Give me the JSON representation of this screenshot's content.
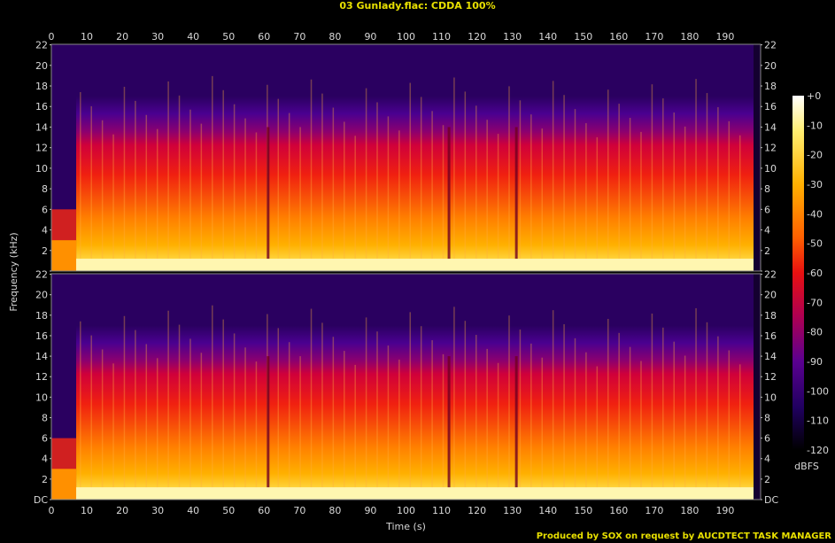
{
  "title": "03 Gunlady.flac: CDDA 100%",
  "footer": "Produced by SOX on request by AUCDTECT TASK MANAGER",
  "chart_data": {
    "type": "heatmap",
    "title": "03 Gunlady.flac: CDDA 100%",
    "xlabel": "Time (s)",
    "ylabel": "Frequency (kHz)",
    "xlim": [
      0,
      200
    ],
    "ylim": [
      0,
      22.05
    ],
    "x_ticks": [
      "0",
      "10",
      "20",
      "30",
      "40",
      "50",
      "60",
      "70",
      "80",
      "90",
      "100",
      "110",
      "120",
      "130",
      "140",
      "150",
      "160",
      "170",
      "180",
      "190"
    ],
    "y_ticks": [
      "DC",
      "2",
      "4",
      "6",
      "8",
      "10",
      "12",
      "14",
      "16",
      "18",
      "20",
      "22"
    ],
    "channels": [
      "left",
      "right"
    ],
    "colorbar": {
      "label": "dBFS",
      "range": [
        -120,
        0
      ],
      "ticks": [
        "+0",
        "-10",
        "-20",
        "-30",
        "-40",
        "-50",
        "-60",
        "-70",
        "-80",
        "-90",
        "-100",
        "-110",
        "-120"
      ]
    },
    "lowpass_cutoff_khz": 16,
    "track_length_s": 198,
    "dips_s": [
      61,
      112,
      131
    ],
    "grid": false,
    "colors": {
      "background": "#000000",
      "text": "#d8d8d8",
      "title": "#e8e000",
      "spectrum_low": "#120030",
      "spectrum_mid": "#e00000",
      "spectrum_high": "#fff8c0"
    }
  }
}
